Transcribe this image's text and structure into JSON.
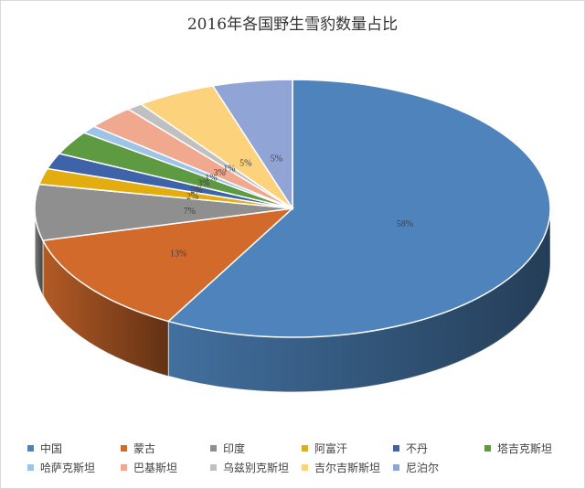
{
  "chart_data": {
    "type": "pie",
    "title": "2016年各国野生雪豹数量占比",
    "legend_position": "bottom",
    "series": [
      {
        "name": "中国",
        "value": 58,
        "label": "58%",
        "color": "#4e84bb"
      },
      {
        "name": "蒙古",
        "value": 13,
        "label": "13%",
        "color": "#d26a2c"
      },
      {
        "name": "印度",
        "value": 7,
        "label": "7%",
        "color": "#8f8f8f"
      },
      {
        "name": "阿富汗",
        "value": 2,
        "label": "2%",
        "color": "#e3ad0f"
      },
      {
        "name": "不丹",
        "value": 2,
        "label": "2%",
        "color": "#3e63a8"
      },
      {
        "name": "塔吉克斯坦",
        "value": 3,
        "label": "3%",
        "color": "#5d9a41"
      },
      {
        "name": "哈萨克斯坦",
        "value": 1,
        "label": "1%",
        "color": "#9dc3e6"
      },
      {
        "name": "巴基斯坦",
        "value": 3,
        "label": "3%",
        "color": "#f0a98e"
      },
      {
        "name": "乌兹别克斯坦",
        "value": 1,
        "label": "1%",
        "color": "#c0c0c0"
      },
      {
        "name": "吉尔吉斯斯坦",
        "value": 5,
        "label": "5%",
        "color": "#fdd27c"
      },
      {
        "name": "尼泊尔",
        "value": 5,
        "label": "5%",
        "color": "#90a4d6"
      }
    ]
  }
}
